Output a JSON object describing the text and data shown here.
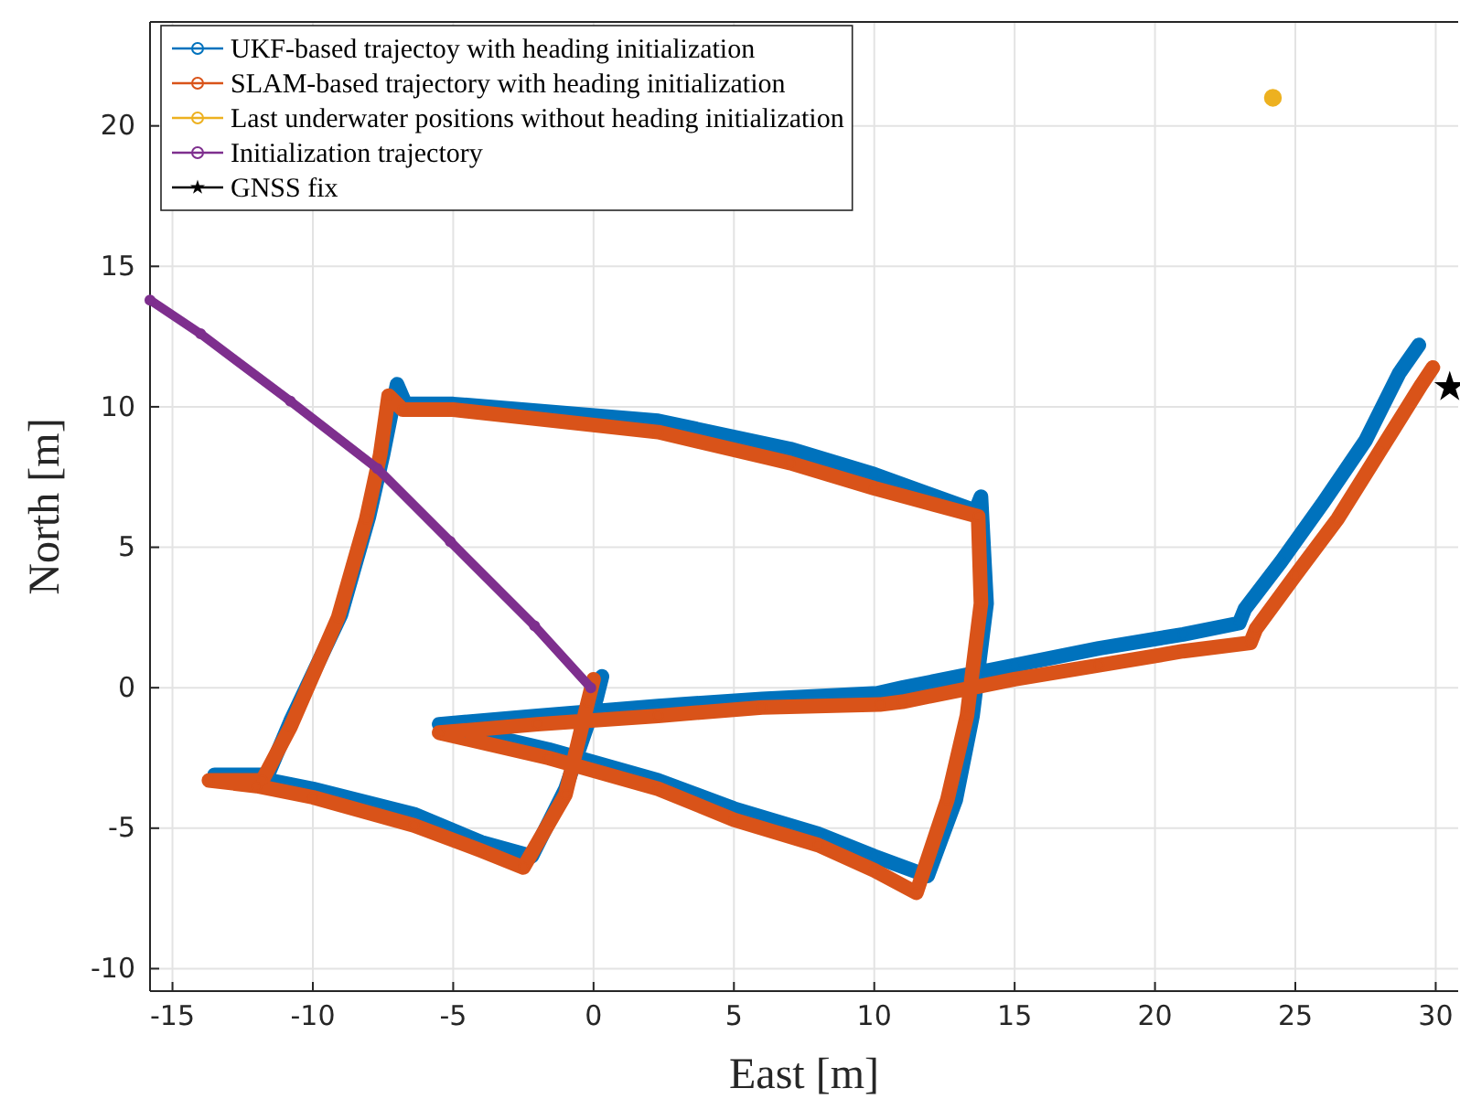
{
  "chart_data": {
    "type": "line",
    "xlabel": "East [m]",
    "ylabel": "North [m]",
    "xlim": [
      -15.8,
      30.8
    ],
    "ylim": [
      -10.8,
      23.7
    ],
    "xticks": [
      -15,
      -10,
      -5,
      0,
      5,
      10,
      15,
      20,
      25,
      30
    ],
    "yticks": [
      -10,
      -5,
      0,
      5,
      10,
      15,
      20
    ],
    "grid": true,
    "legend": "top left",
    "marker": "circle",
    "line_style": "solid",
    "series": [
      {
        "name": "UKF-based trajectoy with heading initialization",
        "color": "#0072bd",
        "x": [
          0.3,
          0.1,
          -1.0,
          -2.2,
          -4,
          -6.4,
          -10,
          -12,
          -13.5,
          -11.6,
          -10.8,
          -9.0,
          -8.0,
          -7.5,
          -7.0,
          -6.7,
          -5,
          2.3,
          7,
          10,
          13.6,
          13.8,
          14,
          13.5,
          12.9,
          11.9,
          10,
          8,
          5,
          2.3,
          -1.6,
          -5.5,
          -2,
          2.3,
          6,
          10.1,
          11,
          15,
          18,
          21,
          23.0,
          23.2,
          24.5,
          26,
          27.5,
          28.7,
          29.4
        ],
        "values": [
          0.4,
          -0.4,
          -3.6,
          -6.0,
          -5.5,
          -4.5,
          -3.6,
          -3.2,
          -3.1,
          -3.1,
          -1.2,
          2.6,
          6.1,
          8.3,
          10.8,
          10.1,
          10.1,
          9.5,
          8.5,
          7.6,
          6.3,
          6.8,
          3,
          -1,
          -4,
          -6.7,
          -6.0,
          -5.2,
          -4.3,
          -3.3,
          -2.2,
          -1.3,
          -1.0,
          -0.65,
          -0.4,
          -0.2,
          0,
          0.8,
          1.4,
          1.9,
          2.3,
          2.8,
          4.5,
          6.6,
          8.8,
          11.2,
          12.2
        ]
      },
      {
        "name": "SLAM-based trajectory with heading initialization",
        "color": "#d95319",
        "x": [
          0.0,
          -0.2,
          -1.0,
          -2.5,
          -4,
          -6.4,
          -10,
          -12,
          -13.7,
          -11.8,
          -10.8,
          -9.1,
          -8.1,
          -7.6,
          -7.3,
          -6.8,
          -5,
          2.3,
          7,
          10,
          13.7,
          13.8,
          13.3,
          12.6,
          11.5,
          10,
          8,
          5,
          2.3,
          -1.6,
          -5.5,
          -2,
          2.3,
          6,
          10.2,
          11,
          15,
          18,
          21,
          23.4,
          23.6,
          25,
          26.5,
          28,
          29.5,
          29.9
        ],
        "values": [
          0.3,
          -0.5,
          -3.8,
          -6.4,
          -5.8,
          -4.9,
          -3.9,
          -3.5,
          -3.3,
          -3.3,
          -1.4,
          2.5,
          6.0,
          8.3,
          10.4,
          9.9,
          9.9,
          9.1,
          8.0,
          7.1,
          6.1,
          3,
          -1,
          -4,
          -7.3,
          -6.5,
          -5.6,
          -4.7,
          -3.6,
          -2.5,
          -1.6,
          -1.3,
          -1.0,
          -0.7,
          -0.6,
          -0.5,
          0.3,
          0.8,
          1.3,
          1.6,
          2.1,
          4,
          6,
          8.4,
          10.8,
          11.4
        ]
      },
      {
        "name": "Last underwater positions without heading initialization",
        "type": "scatter",
        "color": "#edb120",
        "x": [
          24.2
        ],
        "values": [
          21.0
        ]
      },
      {
        "name": "Initialization trajectory",
        "color": "#7e2f8e",
        "x": [
          -15.8,
          -14.0,
          -10.8,
          -7.7,
          -5.1,
          -2.1,
          -0.1
        ],
        "values": [
          13.8,
          12.6,
          10.2,
          7.8,
          5.2,
          2.2,
          0
        ]
      },
      {
        "name": "GNSS fix",
        "type": "scatter",
        "marker": "star",
        "color": "#000000",
        "x": [
          30.5
        ],
        "values": [
          10.7
        ]
      }
    ]
  }
}
